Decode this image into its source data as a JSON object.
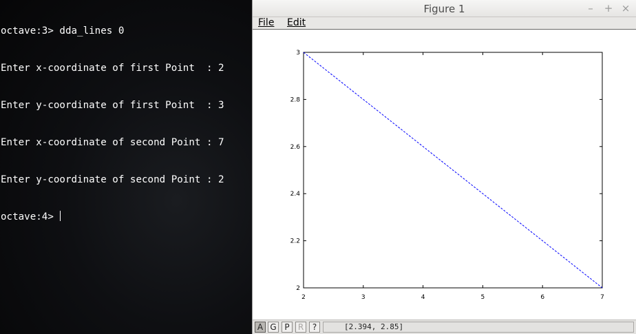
{
  "terminal": {
    "lines": [
      "octave:3> dda_lines 0",
      "Enter x-coordinate of first Point  : 2",
      "Enter y-coordinate of first Point  : 3",
      "Enter x-coordinate of second Point : 7",
      "Enter y-coordinate of second Point : 2"
    ],
    "prompt": "octave:4> "
  },
  "figure_window": {
    "title": "Figure 1",
    "controls": {
      "minimize": "–",
      "maximize": "+",
      "close": "×"
    },
    "menu": {
      "file": "File",
      "edit": "Edit"
    },
    "toolbar": {
      "autoscale": "A",
      "grid": "G",
      "pan": "P",
      "rotate": "R",
      "help": "?"
    },
    "coordinates": "[2.394, 2.85]"
  },
  "chart_data": {
    "type": "line",
    "title": "",
    "xlabel": "",
    "ylabel": "",
    "xlim": [
      2,
      7
    ],
    "ylim": [
      2,
      3
    ],
    "xticks": [
      2,
      3,
      4,
      5,
      6,
      7
    ],
    "yticks": [
      2,
      2.2,
      2.4,
      2.6,
      2.8,
      3
    ],
    "xtick_labels": [
      "2",
      "3",
      "4",
      "5",
      "6",
      "7"
    ],
    "ytick_labels": [
      "2",
      "2.2",
      "2.4",
      "2.6",
      "2.8",
      "3"
    ],
    "grid": false,
    "series": [
      {
        "x": [
          2,
          7
        ],
        "y": [
          3,
          2
        ],
        "color": "#0000ff",
        "style": "dashed"
      }
    ]
  }
}
